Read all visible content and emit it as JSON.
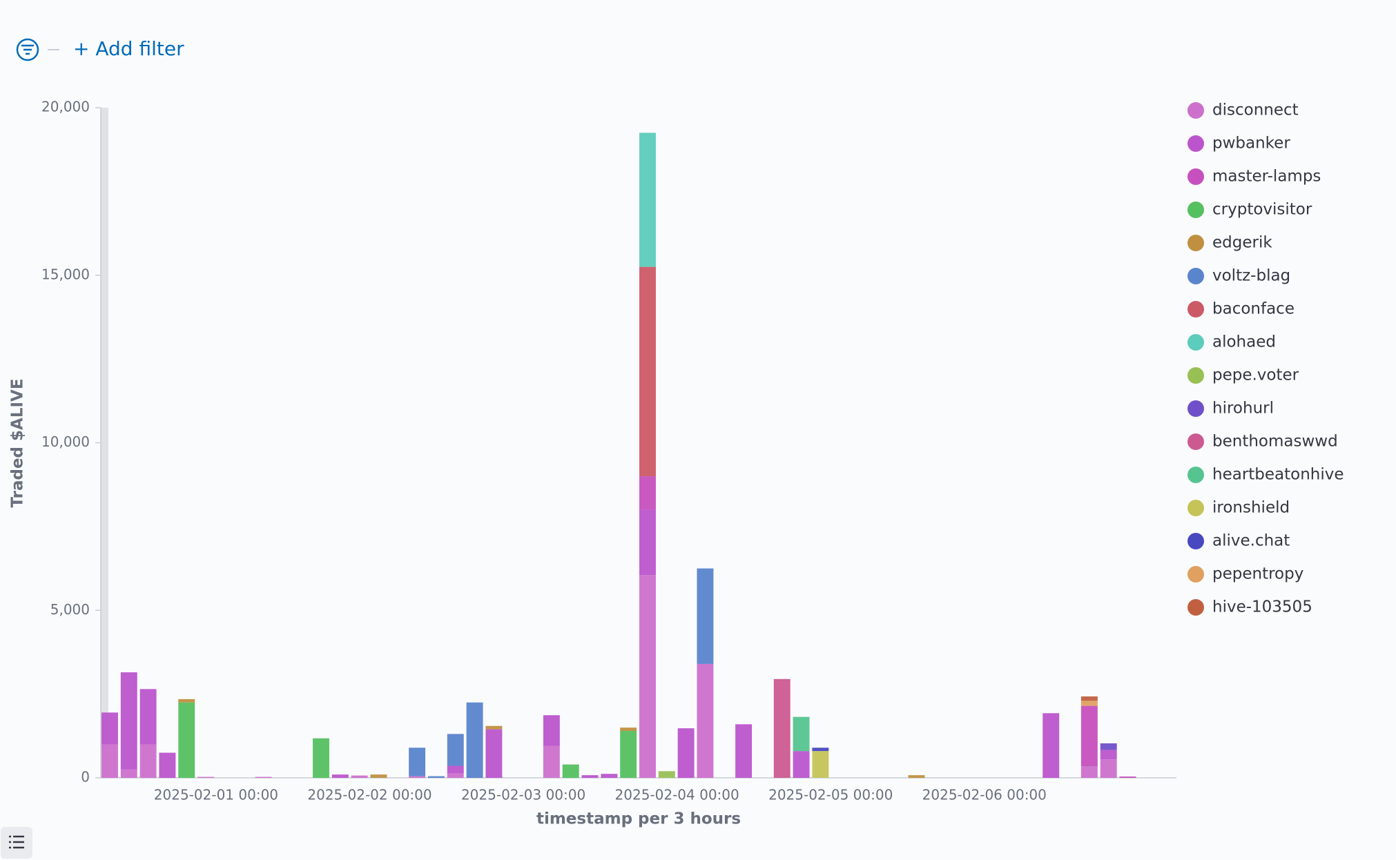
{
  "filter_bar": {
    "add_filter": "+ Add filter"
  },
  "chart_data": {
    "type": "bar",
    "stacked": true,
    "x_label": "timestamp per 3 hours",
    "y_label": "Traded $ALIVE",
    "categories": [
      null,
      null,
      null,
      null,
      null,
      null,
      "2025-02-01 00:00",
      null,
      null,
      null,
      null,
      null,
      null,
      null,
      "2025-02-02 00:00",
      null,
      null,
      null,
      null,
      null,
      null,
      null,
      "2025-02-03 00:00",
      null,
      null,
      null,
      null,
      null,
      null,
      null,
      "2025-02-04 00:00",
      null,
      null,
      null,
      null,
      null,
      null,
      null,
      "2025-02-05 00:00",
      null,
      null,
      null,
      null,
      null,
      null,
      null,
      "2025-02-06 00:00",
      null,
      null,
      null,
      null,
      null,
      null,
      null,
      null,
      null
    ],
    "ylim": [
      0,
      20000
    ],
    "yticks": [
      0,
      {
        "value": 5000,
        "label": "5,000"
      },
      {
        "value": 10000,
        "label": "10,000"
      },
      {
        "value": 15000,
        "label": "15,000"
      },
      {
        "value": 20000,
        "label": "20,000"
      }
    ],
    "grid": false,
    "legend": "right",
    "series": [
      {
        "name": "disconnect",
        "color": "#cc70cc",
        "values": [
          1000,
          250,
          1000,
          0,
          0,
          30,
          0,
          0,
          30,
          0,
          0,
          0,
          0,
          70,
          0,
          0,
          50,
          0,
          130,
          0,
          0,
          0,
          0,
          950,
          0,
          0,
          0,
          0,
          6050,
          0,
          0,
          3400,
          0,
          0,
          0,
          0,
          0,
          0,
          0,
          0,
          0,
          0,
          0,
          0,
          0,
          0,
          0,
          0,
          0,
          0,
          0,
          350,
          550,
          0,
          0,
          0
        ]
      },
      {
        "name": "pwbanker",
        "color": "#bb55cc",
        "values": [
          950,
          2900,
          1650,
          750,
          0,
          0,
          0,
          0,
          0,
          0,
          0,
          0,
          100,
          0,
          0,
          0,
          0,
          0,
          230,
          0,
          1450,
          0,
          0,
          920,
          0,
          80,
          120,
          0,
          1950,
          0,
          1480,
          0,
          0,
          1600,
          0,
          0,
          800,
          0,
          0,
          0,
          0,
          0,
          0,
          0,
          0,
          0,
          0,
          0,
          0,
          1930,
          0,
          0,
          280,
          0,
          0,
          0
        ]
      },
      {
        "name": "master-lamps",
        "color": "#c650be",
        "values": [
          0,
          0,
          0,
          0,
          0,
          0,
          0,
          0,
          0,
          0,
          0,
          0,
          0,
          0,
          0,
          0,
          0,
          0,
          0,
          0,
          0,
          0,
          0,
          0,
          0,
          0,
          0,
          0,
          1000,
          0,
          0,
          0,
          0,
          0,
          0,
          0,
          0,
          0,
          0,
          0,
          0,
          0,
          0,
          0,
          0,
          0,
          0,
          0,
          0,
          0,
          0,
          1800,
          0,
          40,
          0,
          0
        ]
      },
      {
        "name": "cryptovisitor",
        "color": "#55c060",
        "values": [
          0,
          0,
          0,
          0,
          2250,
          0,
          0,
          0,
          0,
          0,
          0,
          1180,
          0,
          0,
          0,
          0,
          0,
          0,
          0,
          0,
          0,
          0,
          0,
          0,
          400,
          0,
          0,
          1400,
          0,
          0,
          0,
          0,
          0,
          0,
          0,
          0,
          0,
          0,
          0,
          0,
          0,
          0,
          0,
          0,
          0,
          0,
          0,
          0,
          0,
          0,
          0,
          0,
          0,
          0,
          0,
          0
        ]
      },
      {
        "name": "edgerik",
        "color": "#c09040",
        "values": [
          0,
          0,
          0,
          0,
          100,
          0,
          0,
          0,
          0,
          0,
          0,
          0,
          0,
          0,
          100,
          0,
          0,
          0,
          0,
          0,
          100,
          0,
          0,
          0,
          0,
          0,
          0,
          100,
          0,
          0,
          0,
          0,
          0,
          0,
          0,
          0,
          0,
          0,
          0,
          0,
          0,
          0,
          80,
          0,
          0,
          0,
          0,
          0,
          0,
          0,
          0,
          0,
          0,
          0,
          0,
          0
        ]
      },
      {
        "name": "voltz-blag",
        "color": "#5a84cc",
        "values": [
          0,
          0,
          0,
          0,
          0,
          0,
          0,
          0,
          0,
          0,
          0,
          0,
          0,
          0,
          0,
          0,
          850,
          50,
          950,
          2250,
          0,
          0,
          0,
          0,
          0,
          0,
          0,
          0,
          0,
          0,
          0,
          2850,
          0,
          0,
          0,
          0,
          0,
          0,
          0,
          0,
          0,
          0,
          0,
          0,
          0,
          0,
          0,
          0,
          0,
          0,
          0,
          0,
          0,
          0,
          0,
          0
        ]
      },
      {
        "name": "baconface",
        "color": "#cc5a66",
        "values": [
          0,
          0,
          0,
          0,
          0,
          0,
          0,
          0,
          0,
          0,
          0,
          0,
          0,
          0,
          0,
          0,
          0,
          0,
          0,
          0,
          0,
          0,
          0,
          0,
          0,
          0,
          0,
          0,
          6250,
          0,
          0,
          0,
          0,
          0,
          0,
          0,
          0,
          0,
          0,
          0,
          0,
          0,
          0,
          0,
          0,
          0,
          0,
          0,
          0,
          0,
          0,
          0,
          0,
          0,
          0,
          0
        ]
      },
      {
        "name": "alohaed",
        "color": "#5cccbc",
        "values": [
          0,
          0,
          0,
          0,
          0,
          0,
          0,
          0,
          0,
          0,
          0,
          0,
          0,
          0,
          0,
          0,
          0,
          0,
          0,
          0,
          0,
          0,
          0,
          0,
          0,
          0,
          0,
          0,
          4000,
          0,
          0,
          0,
          0,
          0,
          0,
          0,
          0,
          0,
          0,
          0,
          0,
          0,
          0,
          0,
          0,
          0,
          0,
          0,
          0,
          0,
          0,
          0,
          0,
          0,
          0,
          0
        ]
      },
      {
        "name": "pepe.voter",
        "color": "#99c055",
        "values": [
          0,
          0,
          0,
          0,
          0,
          0,
          0,
          0,
          0,
          0,
          0,
          0,
          0,
          0,
          0,
          0,
          0,
          0,
          0,
          0,
          0,
          0,
          0,
          0,
          0,
          0,
          0,
          0,
          0,
          200,
          0,
          0,
          0,
          0,
          0,
          0,
          0,
          0,
          0,
          0,
          0,
          0,
          0,
          0,
          0,
          0,
          0,
          0,
          0,
          0,
          0,
          0,
          0,
          0,
          0,
          0
        ]
      },
      {
        "name": "hirohurl",
        "color": "#7050c8",
        "values": [
          0,
          0,
          0,
          0,
          0,
          0,
          0,
          0,
          0,
          0,
          0,
          0,
          0,
          0,
          0,
          0,
          0,
          0,
          0,
          0,
          0,
          0,
          0,
          0,
          0,
          0,
          0,
          0,
          0,
          0,
          0,
          0,
          0,
          0,
          0,
          0,
          0,
          0,
          0,
          0,
          0,
          0,
          0,
          0,
          0,
          0,
          0,
          0,
          0,
          0,
          0,
          0,
          200,
          0,
          0,
          0
        ]
      },
      {
        "name": "benthomaswwd",
        "color": "#cc5a90",
        "values": [
          0,
          0,
          0,
          0,
          0,
          0,
          0,
          0,
          0,
          0,
          0,
          0,
          0,
          0,
          0,
          0,
          0,
          0,
          0,
          0,
          0,
          0,
          0,
          0,
          0,
          0,
          0,
          0,
          0,
          0,
          0,
          0,
          0,
          0,
          0,
          2950,
          0,
          0,
          0,
          0,
          0,
          0,
          0,
          0,
          0,
          0,
          0,
          0,
          0,
          0,
          0,
          0,
          0,
          0,
          0,
          0
        ]
      },
      {
        "name": "heartbeatonhive",
        "color": "#55c490",
        "values": [
          0,
          0,
          0,
          0,
          0,
          0,
          0,
          0,
          0,
          0,
          0,
          0,
          0,
          0,
          0,
          0,
          0,
          0,
          0,
          0,
          0,
          0,
          0,
          0,
          0,
          0,
          0,
          0,
          0,
          0,
          0,
          0,
          0,
          0,
          0,
          0,
          1020,
          0,
          0,
          0,
          0,
          0,
          0,
          0,
          0,
          0,
          0,
          0,
          0,
          0,
          0,
          0,
          0,
          0,
          0,
          0
        ]
      },
      {
        "name": "ironshield",
        "color": "#c4c458",
        "values": [
          0,
          0,
          0,
          0,
          0,
          0,
          0,
          0,
          0,
          0,
          0,
          0,
          0,
          0,
          0,
          0,
          0,
          0,
          0,
          0,
          0,
          0,
          0,
          0,
          0,
          0,
          0,
          0,
          0,
          0,
          0,
          0,
          0,
          0,
          0,
          0,
          0,
          800,
          0,
          0,
          0,
          0,
          0,
          0,
          0,
          0,
          0,
          0,
          0,
          0,
          0,
          0,
          0,
          0,
          0,
          0
        ]
      },
      {
        "name": "alive.chat",
        "color": "#4848c0",
        "values": [
          0,
          0,
          0,
          0,
          0,
          0,
          0,
          0,
          0,
          0,
          0,
          0,
          0,
          0,
          0,
          0,
          0,
          0,
          0,
          0,
          0,
          0,
          0,
          0,
          0,
          0,
          0,
          0,
          0,
          0,
          0,
          0,
          0,
          0,
          0,
          0,
          0,
          100,
          0,
          0,
          0,
          0,
          0,
          0,
          0,
          0,
          0,
          0,
          0,
          0,
          0,
          0,
          0,
          0,
          0,
          0
        ]
      },
      {
        "name": "pepentropy",
        "color": "#e0a060",
        "values": [
          0,
          0,
          0,
          0,
          0,
          0,
          0,
          0,
          0,
          0,
          0,
          0,
          0,
          0,
          0,
          0,
          0,
          0,
          0,
          0,
          0,
          0,
          0,
          0,
          0,
          0,
          0,
          0,
          0,
          0,
          0,
          0,
          0,
          0,
          0,
          0,
          0,
          0,
          0,
          0,
          0,
          0,
          0,
          0,
          0,
          0,
          0,
          0,
          0,
          0,
          0,
          150,
          0,
          0,
          0,
          0
        ]
      },
      {
        "name": "hive-103505",
        "color": "#c06040",
        "values": [
          0,
          0,
          0,
          0,
          0,
          0,
          0,
          0,
          0,
          0,
          0,
          0,
          0,
          0,
          0,
          0,
          0,
          0,
          0,
          0,
          0,
          0,
          0,
          0,
          0,
          0,
          0,
          0,
          0,
          0,
          0,
          0,
          0,
          0,
          0,
          0,
          0,
          0,
          0,
          0,
          0,
          0,
          0,
          0,
          0,
          0,
          0,
          0,
          0,
          0,
          0,
          130,
          0,
          0,
          0,
          0
        ]
      }
    ]
  }
}
